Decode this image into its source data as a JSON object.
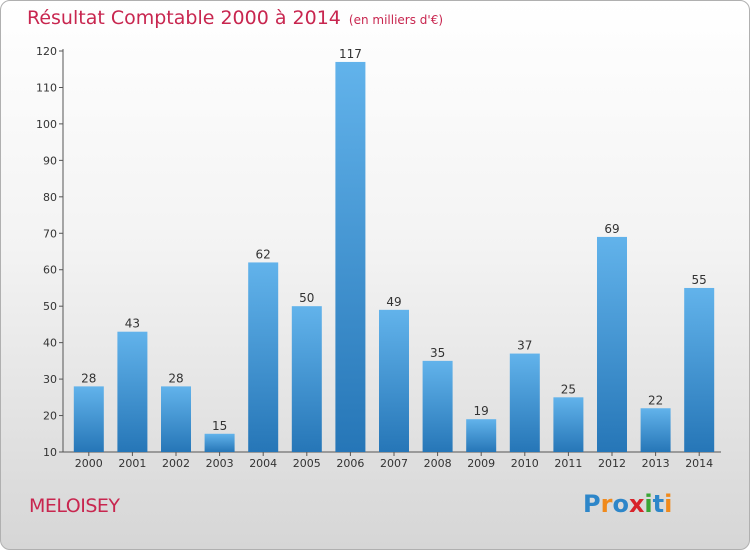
{
  "title": "Résultat Comptable 2000 à 2014",
  "unit": "(en milliers d'€)",
  "commune": "MELOISEY",
  "logo": {
    "letters": [
      {
        "ch": "P",
        "color": "#2d86c9"
      },
      {
        "ch": "r",
        "color": "#f08a1c"
      },
      {
        "ch": "o",
        "color": "#2d86c9"
      },
      {
        "ch": "x",
        "color": "#d8232a"
      },
      {
        "ch": "i",
        "color": "#3aa535"
      },
      {
        "ch": "t",
        "color": "#2d86c9"
      },
      {
        "ch": "i",
        "color": "#f08a1c"
      }
    ]
  },
  "colors": {
    "title": "#c8264f",
    "bar_top": "#62b3eb",
    "bar_bottom": "#2676b7"
  },
  "chart_data": {
    "type": "bar",
    "categories": [
      "2000",
      "2001",
      "2002",
      "2003",
      "2004",
      "2005",
      "2006",
      "2007",
      "2008",
      "2009",
      "2010",
      "2011",
      "2012",
      "2013",
      "2014"
    ],
    "values": [
      28,
      43,
      28,
      15,
      62,
      50,
      117,
      49,
      35,
      19,
      37,
      25,
      69,
      22,
      55
    ],
    "ylim": [
      10,
      120
    ],
    "yticks": [
      10,
      20,
      30,
      40,
      50,
      60,
      70,
      80,
      90,
      100,
      110,
      120
    ],
    "grid": false,
    "data_labels": true
  }
}
